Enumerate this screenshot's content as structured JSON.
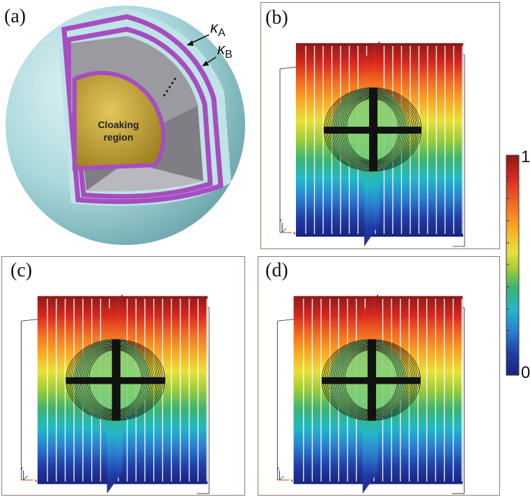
{
  "panels": {
    "a": {
      "label": "(a)",
      "kappa_a": "κ",
      "kappa_a_sub": "A",
      "kappa_b": "κ",
      "kappa_b_sub": "B",
      "cloak_line1": "Cloaking",
      "cloak_line2": "region"
    },
    "b": {
      "label": "(b)"
    },
    "c": {
      "label": "(c)"
    },
    "d": {
      "label": "(d)"
    }
  },
  "axes_triad": {
    "z": "z",
    "y": "y",
    "x": "x"
  },
  "colorbar": {
    "max_label": "1",
    "min_label": "0",
    "colors": [
      "#8b1a1a",
      "#d7261e",
      "#f36b21",
      "#f9a825",
      "#e8e13a",
      "#9ccc3a",
      "#3cb371",
      "#22b8c8",
      "#2a7fd0",
      "#1f3fa8",
      "#1a237e"
    ]
  },
  "colors": {
    "sphere_shell": "#bfe3e6",
    "purple_layer": "#a64dbf",
    "grey_layer": "#8a8a8f",
    "core": "#c9a83b",
    "panel_border": "#8a7a6a"
  }
}
